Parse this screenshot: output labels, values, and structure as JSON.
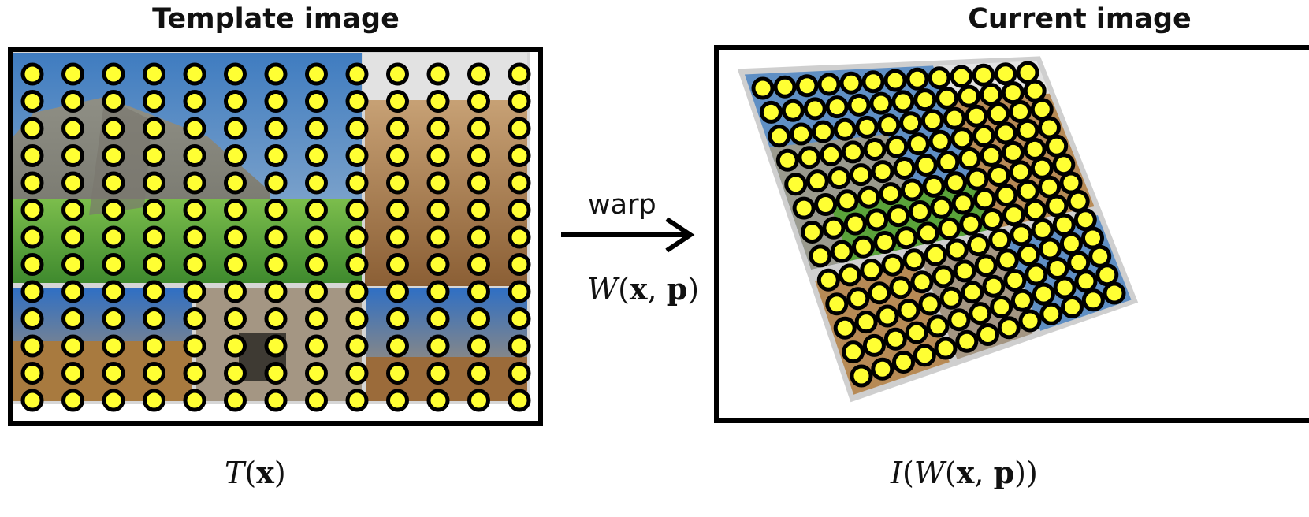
{
  "template": {
    "title": "Template image",
    "function_label": {
      "fn": "T",
      "arg": "x"
    }
  },
  "current": {
    "title": "Current image",
    "function_label": {
      "outer": "I",
      "inner": "W",
      "arg1": "x",
      "arg2": "p"
    }
  },
  "arrow": {
    "label": "warp",
    "function": {
      "fn": "W",
      "arg1": "x",
      "arg2": "p"
    }
  },
  "grid": {
    "columns": 13,
    "rows": 13
  },
  "colors": {
    "point_fill": "#ffff33",
    "point_stroke": "#000000",
    "frame": "#000000",
    "sky": "#5f8fc4",
    "grass": "#5aa33a",
    "stone": "#9a9a8e",
    "sand": "#b78a55",
    "paper": "#cfcfcf"
  }
}
